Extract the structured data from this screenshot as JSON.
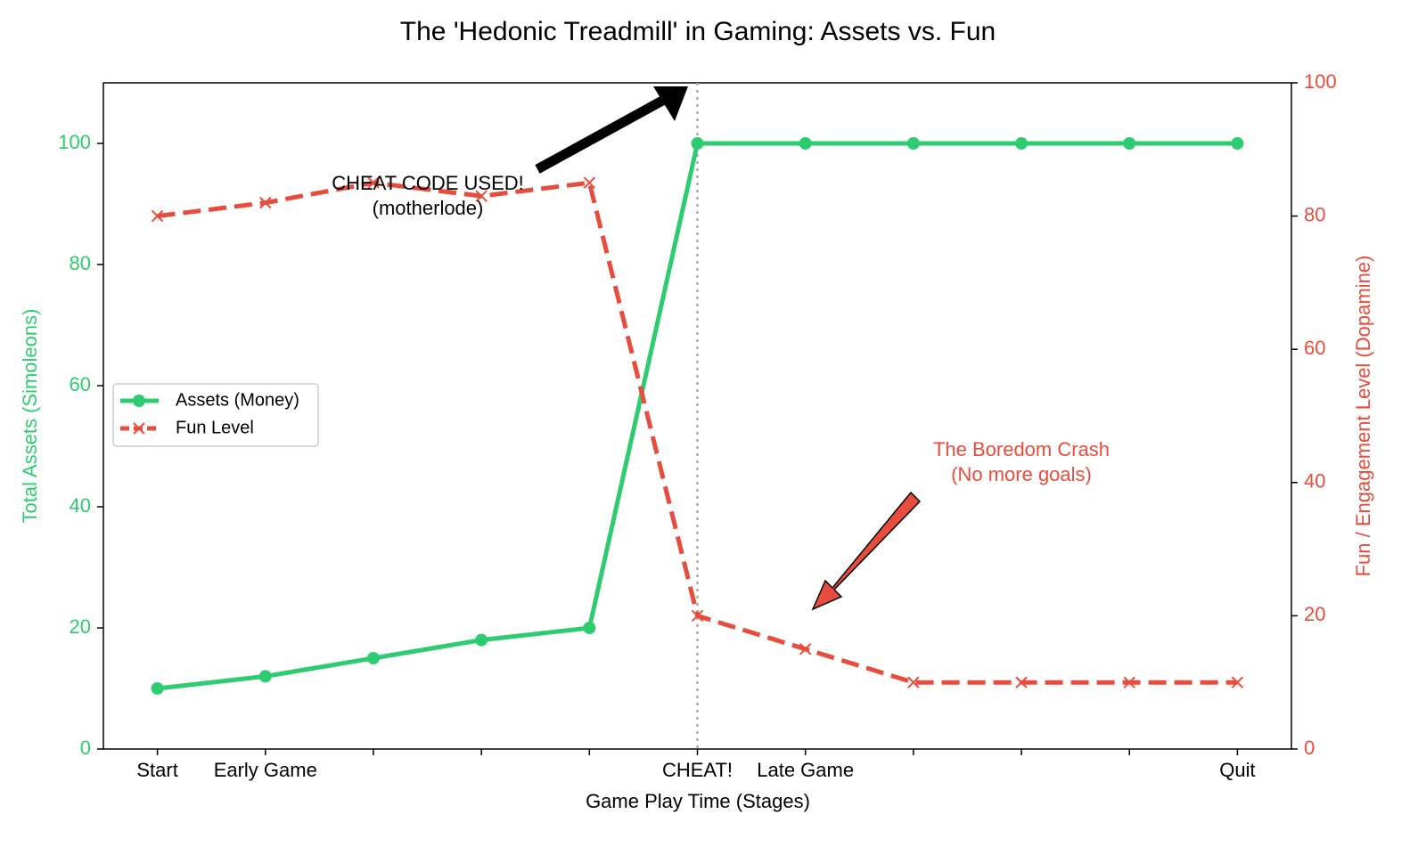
{
  "chart_data": {
    "type": "line",
    "title": "The 'Hedonic Treadmill' in Gaming: Assets vs. Fun",
    "x_label": "Game Play Time (Stages)",
    "y_label": "Total Assets (Simoleons)",
    "y2_label": "Fun / Engagement Level (Dopamine)",
    "categories": [
      "Start",
      "Early Game",
      null,
      null,
      null,
      "CHEAT!",
      "Late Game",
      null,
      null,
      null,
      "Quit"
    ],
    "series": [
      {
        "name": "Assets (Money)",
        "color": "#2ecc71",
        "marker": "o",
        "linestyle": "solid",
        "axis": "y",
        "values": [
          10,
          12,
          15,
          18,
          20,
          100,
          100,
          100,
          100,
          100,
          100
        ]
      },
      {
        "name": "Fun Level",
        "color": "#e74c3c",
        "marker": "x",
        "linestyle": "dashed",
        "axis": "y2",
        "values": [
          80,
          82,
          85,
          83,
          85,
          20,
          15,
          10,
          10,
          10,
          10
        ]
      }
    ],
    "ylim": [
      0,
      110
    ],
    "yticks": [
      0,
      20,
      40,
      60,
      80,
      100
    ],
    "y2lim": [
      0,
      100
    ],
    "y2ticks": [
      0,
      20,
      40,
      60,
      80,
      100
    ],
    "legend": "center left",
    "vline_category": 5,
    "annotations": [
      {
        "lines": [
          "CHEAT CODE USED!",
          "(motherlode)"
        ],
        "color": "#000000"
      },
      {
        "lines": [
          "The Boredom Crash",
          "(No more goals)"
        ],
        "color": "#e74c3c"
      }
    ]
  }
}
